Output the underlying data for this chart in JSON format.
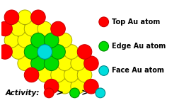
{
  "bg_color": "#ffffff",
  "pd_color": "#ffff00",
  "pd_edge_color": "#aaaa00",
  "top_color": "#ff0000",
  "top_edge_color": "#cc0000",
  "edge_color": "#00dd00",
  "edge_edge_color": "#008800",
  "face_color": "#00dddd",
  "face_edge_color": "#008888",
  "legend_items": [
    {
      "label": "Top Au atom",
      "color": "#ff0000",
      "ec": "#cc0000"
    },
    {
      "label": "Edge Au atom",
      "color": "#00dd00",
      "ec": "#008800"
    },
    {
      "label": "Face Au atom",
      "color": "#00dddd",
      "ec": "#008888"
    }
  ],
  "activity_text": "Activity:",
  "activity_circles": [
    {
      "color": "#ff0000",
      "ec": "#cc0000"
    },
    {
      "color": "#00dd00",
      "ec": "#008800"
    },
    {
      "color": "#00dddd",
      "ec": "#008888"
    }
  ],
  "legend_fontsize": 7.0,
  "activity_fontsize": 7.5
}
